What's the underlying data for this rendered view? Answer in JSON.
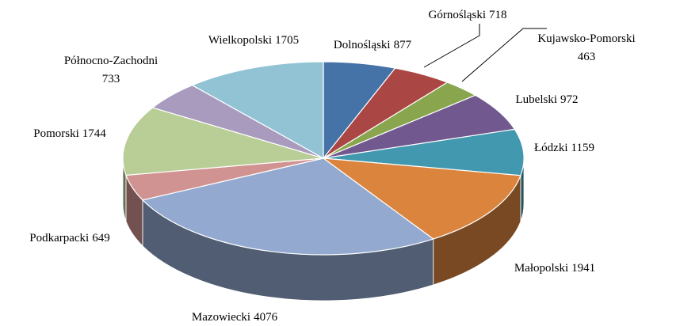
{
  "chart_data": {
    "type": "pie3d",
    "categories": [
      "Dolnośląski",
      "Górnośląski",
      "Kujawsko-Pomorski",
      "Lubelski",
      "Łódzki",
      "Małopolski",
      "Mazowiecki",
      "Podkarpacki",
      "Pomorski",
      "Północno-Zachodni",
      "Wielkopolski"
    ],
    "values": [
      877,
      718,
      463,
      972,
      1159,
      1941,
      4076,
      649,
      1744,
      733,
      1705
    ],
    "colors": [
      "#4572a7",
      "#aa4643",
      "#89a54e",
      "#71588f",
      "#4198af",
      "#db843d",
      "#93a9cf",
      "#d19392",
      "#b9cd96",
      "#a99bbd",
      "#91c3d5"
    ]
  }
}
